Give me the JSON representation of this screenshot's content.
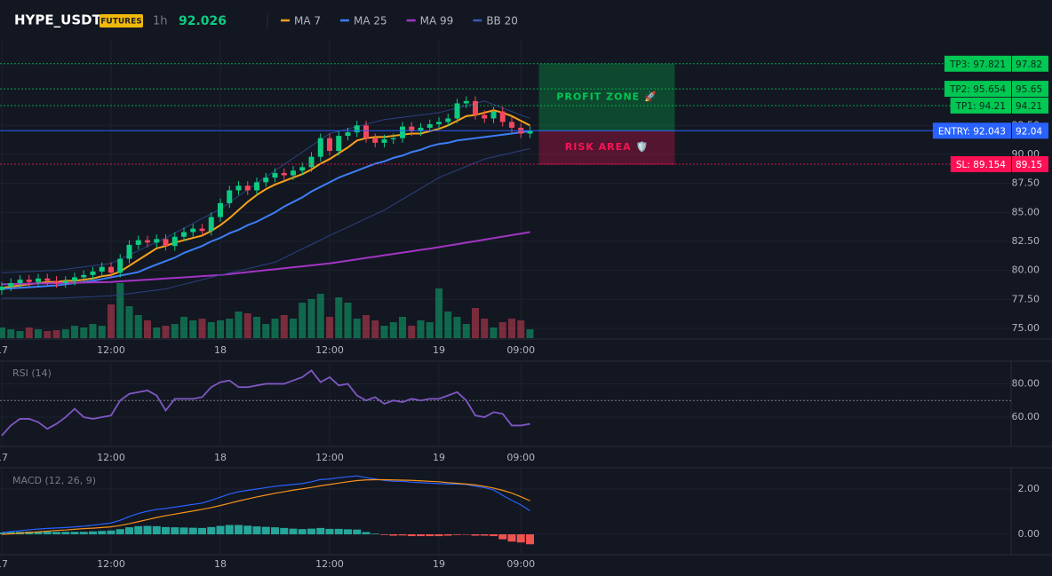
{
  "header": {
    "symbol": "HYPE_USDT",
    "badge": "FUTURES",
    "interval": "1h",
    "price": "92.026"
  },
  "chart_data": [
    {
      "type": "candlestick",
      "categories": [
        "17",
        null,
        null,
        null,
        null,
        null,
        null,
        null,
        null,
        null,
        null,
        null,
        "12:00",
        null,
        null,
        null,
        null,
        null,
        null,
        null,
        null,
        null,
        null,
        null,
        "18",
        null,
        null,
        null,
        null,
        null,
        null,
        null,
        null,
        null,
        null,
        null,
        "12:00",
        null,
        null,
        null,
        null,
        null,
        null,
        null,
        null,
        null,
        null,
        null,
        "19",
        null,
        null,
        null,
        null,
        null,
        null,
        null,
        null,
        "09:00",
        null
      ],
      "open": [
        78.3,
        78.6,
        78.9,
        79.2,
        79.0,
        79.3,
        79.1,
        78.9,
        79.1,
        79.4,
        79.6,
        79.9,
        80.3,
        79.8,
        81.0,
        82.2,
        82.6,
        82.4,
        82.7,
        82.1,
        82.9,
        83.3,
        83.6,
        83.4,
        84.6,
        85.8,
        86.9,
        87.3,
        86.9,
        87.6,
        88.0,
        88.4,
        88.2,
        88.6,
        88.9,
        89.8,
        91.4,
        90.3,
        91.6,
        91.9,
        92.5,
        91.4,
        91.0,
        91.3,
        91.4,
        92.4,
        92.0,
        92.3,
        92.6,
        92.8,
        93.1,
        94.4,
        94.6,
        93.4,
        93.1,
        93.7,
        92.8,
        92.3,
        91.8
      ],
      "high": [
        79.0,
        79.3,
        79.6,
        79.6,
        79.7,
        79.7,
        79.5,
        79.5,
        79.8,
        80.0,
        80.3,
        80.7,
        80.7,
        81.4,
        82.6,
        83.0,
        83.0,
        83.1,
        83.1,
        83.3,
        83.7,
        84.0,
        84.0,
        85.0,
        86.2,
        87.3,
        87.7,
        87.7,
        88.0,
        88.4,
        88.8,
        88.8,
        89.0,
        89.3,
        90.2,
        91.8,
        91.8,
        92.0,
        92.3,
        92.9,
        92.9,
        91.8,
        91.7,
        91.8,
        92.8,
        92.8,
        92.7,
        93.0,
        93.2,
        93.5,
        94.8,
        95.0,
        95.0,
        93.8,
        94.1,
        94.1,
        93.2,
        92.7,
        92.43
      ],
      "low": [
        77.9,
        78.2,
        78.5,
        78.6,
        78.6,
        78.7,
        78.5,
        78.5,
        78.7,
        79.0,
        79.2,
        79.5,
        79.4,
        79.4,
        80.6,
        81.8,
        82.0,
        82.0,
        81.7,
        81.7,
        82.5,
        82.9,
        83.0,
        83.0,
        84.2,
        85.4,
        86.5,
        86.5,
        86.5,
        87.2,
        87.6,
        87.8,
        87.8,
        88.2,
        88.5,
        89.4,
        89.9,
        89.9,
        91.2,
        91.5,
        91.0,
        90.6,
        90.6,
        90.9,
        91.0,
        91.6,
        91.6,
        91.9,
        92.2,
        92.4,
        92.7,
        94.0,
        93.0,
        92.7,
        92.7,
        92.4,
        91.9,
        91.4,
        91.4
      ],
      "close": [
        78.6,
        78.9,
        79.2,
        79.0,
        79.3,
        79.1,
        78.9,
        79.1,
        79.4,
        79.6,
        79.9,
        80.3,
        79.8,
        81.0,
        82.2,
        82.6,
        82.4,
        82.7,
        82.1,
        82.9,
        83.3,
        83.6,
        83.4,
        84.6,
        85.8,
        86.9,
        87.3,
        86.9,
        87.6,
        88.0,
        88.4,
        88.2,
        88.6,
        88.9,
        89.8,
        91.4,
        90.3,
        91.6,
        91.9,
        92.5,
        91.4,
        91.0,
        91.3,
        91.4,
        92.4,
        92.0,
        92.3,
        92.6,
        92.8,
        93.1,
        94.4,
        94.6,
        93.4,
        93.1,
        93.7,
        92.8,
        92.3,
        91.8,
        92.03
      ],
      "volume": [
        12,
        10,
        8,
        12,
        10,
        8,
        9,
        10,
        14,
        12,
        16,
        14,
        38,
        62,
        36,
        26,
        20,
        12,
        14,
        16,
        24,
        20,
        22,
        18,
        20,
        22,
        30,
        28,
        24,
        16,
        22,
        26,
        22,
        40,
        44,
        50,
        24,
        46,
        40,
        22,
        26,
        20,
        14,
        18,
        24,
        14,
        20,
        18,
        56,
        30,
        24,
        16,
        34,
        22,
        12,
        18,
        22,
        20,
        10
      ],
      "up_color": "#0ecb81",
      "down_color": "#f6465d",
      "series": [
        {
          "name": "MA 7",
          "color": "#f7a21b",
          "values": [
            78.5,
            78.6,
            78.7,
            78.8,
            78.9,
            79.0,
            79.0,
            79.1,
            79.1,
            79.2,
            79.3,
            79.5,
            79.6,
            79.9,
            80.4,
            80.9,
            81.4,
            81.9,
            82.1,
            82.4,
            82.6,
            82.8,
            83.0,
            83.4,
            83.9,
            84.5,
            85.2,
            85.9,
            86.5,
            87.0,
            87.4,
            87.7,
            88.0,
            88.3,
            88.7,
            89.2,
            89.6,
            90.1,
            90.6,
            91.2,
            91.4,
            91.5,
            91.5,
            91.6,
            91.7,
            91.8,
            91.8,
            92.0,
            92.2,
            92.5,
            92.9,
            93.3,
            93.4,
            93.6,
            93.8,
            93.6,
            93.3,
            92.9,
            92.5
          ]
        },
        {
          "name": "MA 25",
          "color": "#3d7ef5",
          "values": [
            78.4,
            78.45,
            78.5,
            78.55,
            78.6,
            78.65,
            78.7,
            78.8,
            78.9,
            79.0,
            79.1,
            79.25,
            79.4,
            79.55,
            79.7,
            79.85,
            80.2,
            80.5,
            80.8,
            81.1,
            81.5,
            81.8,
            82.1,
            82.5,
            82.8,
            83.2,
            83.5,
            83.9,
            84.2,
            84.6,
            85.0,
            85.5,
            85.9,
            86.3,
            86.8,
            87.2,
            87.6,
            88.0,
            88.3,
            88.6,
            88.9,
            89.2,
            89.4,
            89.7,
            89.9,
            90.2,
            90.4,
            90.7,
            90.9,
            91.0,
            91.2,
            91.3,
            91.4,
            91.5,
            91.6,
            91.7,
            91.8,
            91.9,
            92.0
          ]
        },
        {
          "name": "MA 99",
          "color": "#a334c4",
          "values": [
            78.8,
            78.82,
            78.83,
            78.85,
            78.87,
            78.88,
            78.9,
            78.92,
            78.93,
            78.95,
            78.97,
            78.98,
            79.0,
            79.05,
            79.1,
            79.15,
            79.2,
            79.25,
            79.3,
            79.35,
            79.4,
            79.45,
            79.5,
            79.55,
            79.6,
            79.68,
            79.77,
            79.85,
            79.93,
            80.02,
            80.1,
            80.18,
            80.27,
            80.35,
            80.43,
            80.52,
            80.6,
            80.72,
            80.83,
            80.95,
            81.07,
            81.18,
            81.3,
            81.42,
            81.53,
            81.65,
            81.77,
            81.88,
            82.0,
            82.13,
            82.26,
            82.39,
            82.52,
            82.65,
            82.78,
            82.91,
            83.04,
            83.17,
            83.3
          ]
        },
        {
          "name": "BB 20",
          "color": "#2b4180",
          "upper": [
            79.8,
            79.83,
            79.87,
            79.9,
            79.93,
            79.97,
            80.0,
            80.1,
            80.2,
            80.3,
            80.4,
            80.5,
            80.6,
            80.97,
            81.33,
            81.7,
            82.07,
            82.43,
            82.8,
            83.22,
            83.63,
            84.05,
            84.47,
            84.88,
            85.3,
            85.85,
            86.4,
            86.95,
            87.5,
            88.05,
            88.6,
            89.13,
            89.67,
            90.2,
            90.73,
            91.27,
            91.8,
            92.0,
            92.2,
            92.4,
            92.6,
            92.8,
            93.0,
            93.1,
            93.2,
            93.3,
            93.4,
            93.5,
            93.6,
            93.8,
            94.0,
            94.2,
            94.4,
            94.6,
            94.3,
            94.0,
            93.7,
            93.4,
            93.1
          ],
          "lower": [
            77.6,
            77.6,
            77.6,
            77.6,
            77.6,
            77.6,
            77.6,
            77.63,
            77.67,
            77.7,
            77.73,
            77.77,
            77.8,
            77.9,
            78.0,
            78.1,
            78.2,
            78.3,
            78.4,
            78.6,
            78.8,
            79.0,
            79.2,
            79.4,
            79.6,
            79.78,
            79.97,
            80.15,
            80.33,
            80.52,
            80.7,
            81.08,
            81.47,
            81.85,
            82.23,
            82.62,
            83.0,
            83.37,
            83.73,
            84.1,
            84.47,
            84.83,
            85.2,
            85.67,
            86.13,
            86.6,
            87.07,
            87.53,
            88.0,
            88.32,
            88.64,
            88.96,
            89.28,
            89.6,
            89.78,
            89.96,
            90.14,
            90.32,
            90.5
          ]
        }
      ],
      "ylim": [
        74.08,
        99.87
      ],
      "yticks": [
        {
          "value": 75,
          "label": "75.00"
        },
        {
          "value": 77.5,
          "label": "77.50"
        },
        {
          "value": 80,
          "label": "80.00"
        },
        {
          "value": 82.5,
          "label": "82.50"
        },
        {
          "value": 85,
          "label": "85.00"
        },
        {
          "value": 87.5,
          "label": "87.50"
        },
        {
          "value": 90,
          "label": "90.00"
        },
        {
          "value": 92.5,
          "label": "92.50"
        }
      ],
      "levels": [
        {
          "label": "TP3: 97.821",
          "value": 97.821,
          "axis_label": "97.82",
          "color": "#00c853"
        },
        {
          "label": "TP2: 95.654",
          "value": 95.654,
          "axis_label": "95.65",
          "color": "#00c853"
        },
        {
          "label": "TP1: 94.21",
          "value": 94.21,
          "axis_label": "94.21",
          "color": "#00c853"
        },
        {
          "label": "ENTRY: 92.043",
          "value": 92.043,
          "axis_label": "92.04",
          "color": "#2962ff"
        },
        {
          "label": "SL: 89.154",
          "value": 89.154,
          "axis_label": "89.15",
          "color": "#ff1155"
        }
      ],
      "zones": [
        {
          "label": "PROFIT ZONE 🚀",
          "color": "#00c853"
        },
        {
          "label": "RISK AREA 🛡️",
          "color": "#ff1155"
        }
      ]
    },
    {
      "type": "line",
      "title": "RSI (14)",
      "color": "#7e57c2",
      "values": [
        49,
        55,
        59,
        59,
        57,
        53,
        56,
        60,
        65,
        60,
        59,
        60,
        61,
        70,
        74,
        75,
        76,
        73,
        64,
        71,
        71,
        71,
        72,
        78,
        81,
        82,
        78,
        78,
        79,
        80,
        80,
        80,
        82,
        84,
        88,
        81,
        84,
        79,
        80,
        73,
        70,
        72,
        68,
        70,
        69,
        71,
        70,
        71,
        71,
        73,
        75,
        70,
        61,
        60,
        63,
        62,
        55,
        55,
        56
      ],
      "ref_line": 70,
      "ylim": [
        43,
        93
      ],
      "yticks": [
        {
          "value": 80,
          "label": "80.00"
        },
        {
          "value": 60,
          "label": "60.00"
        }
      ]
    },
    {
      "type": "macd",
      "title": "MACD (12, 26, 9)",
      "series": [
        {
          "color": "#2962ff",
          "values": [
            0.08,
            0.12,
            0.16,
            0.2,
            0.23,
            0.26,
            0.28,
            0.3,
            0.33,
            0.36,
            0.4,
            0.45,
            0.5,
            0.62,
            0.78,
            0.92,
            1.02,
            1.1,
            1.14,
            1.2,
            1.26,
            1.32,
            1.38,
            1.5,
            1.64,
            1.78,
            1.88,
            1.94,
            2.0,
            2.06,
            2.12,
            2.16,
            2.2,
            2.24,
            2.32,
            2.42,
            2.44,
            2.5,
            2.54,
            2.58,
            2.5,
            2.44,
            2.38,
            2.34,
            2.34,
            2.3,
            2.28,
            2.26,
            2.24,
            2.22,
            2.22,
            2.2,
            2.12,
            2.06,
            1.96,
            1.72,
            1.5,
            1.3,
            1.04
          ]
        },
        {
          "color": "#f7931a",
          "values": [
            0.0,
            0.02,
            0.05,
            0.08,
            0.11,
            0.14,
            0.17,
            0.19,
            0.22,
            0.25,
            0.27,
            0.3,
            0.33,
            0.39,
            0.47,
            0.56,
            0.65,
            0.74,
            0.82,
            0.89,
            0.96,
            1.03,
            1.1,
            1.18,
            1.27,
            1.37,
            1.47,
            1.56,
            1.65,
            1.73,
            1.81,
            1.88,
            1.95,
            2.01,
            2.07,
            2.14,
            2.2,
            2.26,
            2.32,
            2.37,
            2.4,
            2.41,
            2.41,
            2.4,
            2.39,
            2.38,
            2.36,
            2.34,
            2.32,
            2.28,
            2.25,
            2.22,
            2.18,
            2.12,
            2.04,
            1.94,
            1.82,
            1.66,
            1.48
          ]
        }
      ],
      "histogram": {
        "up_color": "#26a69a",
        "down_color": "#ef5350",
        "values": [
          0.08,
          0.1,
          0.11,
          0.12,
          0.12,
          0.12,
          0.11,
          0.11,
          0.11,
          0.11,
          0.13,
          0.15,
          0.17,
          0.23,
          0.31,
          0.36,
          0.37,
          0.36,
          0.32,
          0.31,
          0.3,
          0.29,
          0.28,
          0.32,
          0.37,
          0.41,
          0.41,
          0.38,
          0.35,
          0.33,
          0.31,
          0.28,
          0.25,
          0.23,
          0.25,
          0.28,
          0.24,
          0.24,
          0.22,
          0.21,
          0.1,
          0.03,
          -0.03,
          -0.06,
          -0.05,
          -0.08,
          -0.08,
          -0.08,
          -0.08,
          -0.06,
          -0.03,
          -0.02,
          -0.06,
          -0.06,
          -0.08,
          -0.22,
          -0.32,
          -0.36,
          -0.44
        ]
      },
      "ylim": [
        -0.9,
        2.9
      ],
      "yticks": [
        {
          "value": 2,
          "label": "2.00"
        },
        {
          "value": 0,
          "label": "0.00"
        }
      ]
    }
  ]
}
